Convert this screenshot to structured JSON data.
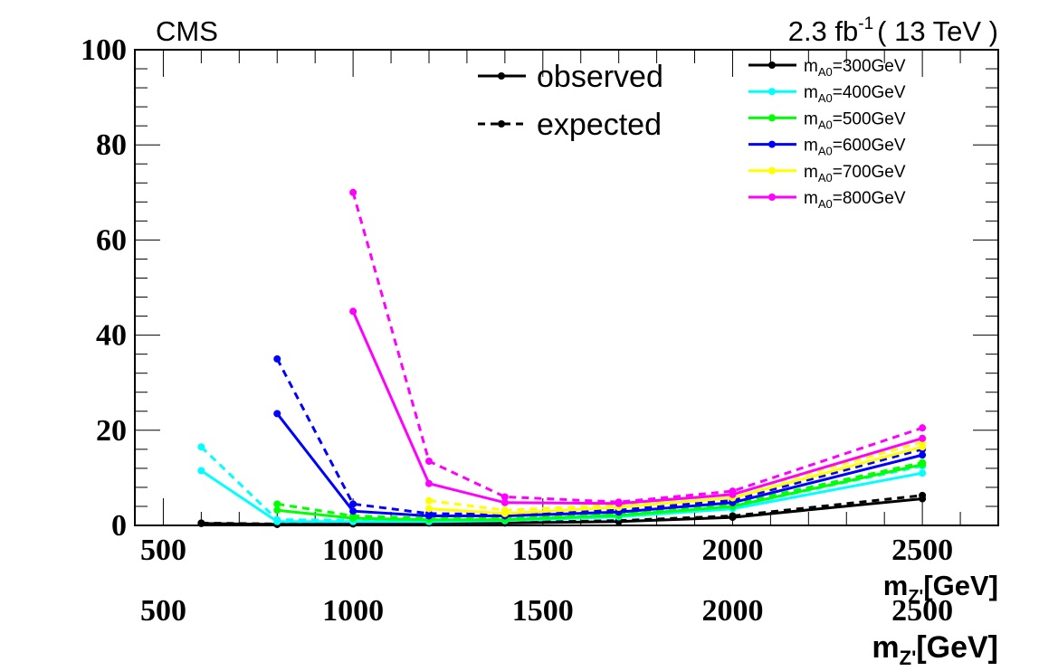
{
  "chart_data": {
    "type": "line",
    "header": {
      "left": "CMS",
      "lumi": "2.3 fb",
      "lumi_sup": "-1",
      "energy": "( 13 TeV )"
    },
    "xlabel": {
      "main": "m",
      "sub": "Z'",
      "unit": "[GeV]"
    },
    "ylabel": "",
    "xlim": [
      425,
      2700
    ],
    "ylim": [
      0,
      100
    ],
    "xticks": [
      500,
      1000,
      1500,
      2000,
      2500
    ],
    "yticks": [
      0,
      20,
      40,
      60,
      80,
      100
    ],
    "style_legend": [
      {
        "label": "observed",
        "dash": "solid"
      },
      {
        "label": "expected",
        "dash": "dashed"
      }
    ],
    "series": [
      {
        "name": "m_{A0}=300GeV",
        "label_main": "m",
        "label_sub": "A0",
        "label_rest": "=300GeV",
        "color": "#000000",
        "observed": [
          [
            600,
            0.4
          ],
          [
            800,
            0.2
          ],
          [
            1000,
            0.3
          ],
          [
            1200,
            0.5
          ],
          [
            1400,
            0.5
          ],
          [
            1700,
            0.8
          ],
          [
            2000,
            1.7
          ],
          [
            2500,
            5.6
          ]
        ],
        "expected": [
          [
            600,
            0.5
          ],
          [
            800,
            0.3
          ],
          [
            1000,
            0.4
          ],
          [
            1200,
            0.6
          ],
          [
            1400,
            0.6
          ],
          [
            1700,
            1.0
          ],
          [
            2000,
            2.0
          ],
          [
            2500,
            6.3
          ]
        ]
      },
      {
        "name": "m_{A0}=400GeV",
        "label_main": "m",
        "label_sub": "A0",
        "label_rest": "=400GeV",
        "color": "#00ffff",
        "observed": [
          [
            600,
            11.5
          ],
          [
            800,
            0.8
          ],
          [
            1000,
            0.8
          ],
          [
            1200,
            0.8
          ],
          [
            1400,
            1.0
          ],
          [
            1700,
            1.8
          ],
          [
            2000,
            3.5
          ],
          [
            2500,
            11.0
          ]
        ],
        "expected": [
          [
            600,
            16.5
          ],
          [
            800,
            1.2
          ],
          [
            1000,
            1.1
          ],
          [
            1200,
            1.1
          ],
          [
            1400,
            1.3
          ],
          [
            1700,
            2.2
          ],
          [
            2000,
            4.0
          ],
          [
            2500,
            12.5
          ]
        ]
      },
      {
        "name": "m_{A0}=500GeV",
        "label_main": "m",
        "label_sub": "A0",
        "label_rest": "=500GeV",
        "color": "#00ff00",
        "observed": [
          [
            800,
            3.2
          ],
          [
            1000,
            1.5
          ],
          [
            1200,
            1.2
          ],
          [
            1400,
            1.2
          ],
          [
            1700,
            2.1
          ],
          [
            2000,
            4.0
          ],
          [
            2500,
            12.8
          ]
        ],
        "expected": [
          [
            800,
            4.5
          ],
          [
            1000,
            2.0
          ],
          [
            1200,
            1.5
          ],
          [
            1400,
            1.5
          ],
          [
            1700,
            2.5
          ],
          [
            2000,
            4.5
          ],
          [
            2500,
            13.2
          ]
        ]
      },
      {
        "name": "m_{A0}=600GeV",
        "label_main": "m",
        "label_sub": "A0",
        "label_rest": "=600GeV",
        "color": "#0000ff",
        "observed": [
          [
            800,
            23.5
          ],
          [
            1000,
            3.0
          ],
          [
            1200,
            2.0
          ],
          [
            1400,
            2.0
          ],
          [
            1700,
            2.8
          ],
          [
            2000,
            4.8
          ],
          [
            2500,
            14.8
          ]
        ],
        "expected": [
          [
            800,
            35.0
          ],
          [
            1000,
            4.5
          ],
          [
            1200,
            2.5
          ],
          [
            1400,
            2.3
          ],
          [
            1700,
            3.2
          ],
          [
            2000,
            5.3
          ],
          [
            2500,
            16.0
          ]
        ]
      },
      {
        "name": "m_{A0}=700GeV",
        "label_main": "m",
        "label_sub": "A0",
        "label_rest": "=700GeV",
        "color": "#ffff00",
        "observed": [
          [
            1200,
            3.5
          ],
          [
            1400,
            2.5
          ],
          [
            1700,
            3.8
          ],
          [
            2000,
            5.8
          ],
          [
            2500,
            16.5
          ]
        ],
        "expected": [
          [
            1200,
            5.2
          ],
          [
            1400,
            3.2
          ],
          [
            1700,
            4.3
          ],
          [
            2000,
            6.5
          ],
          [
            2500,
            17.5
          ]
        ]
      },
      {
        "name": "m_{A0}=800GeV",
        "label_main": "m",
        "label_sub": "A0",
        "label_rest": "=800GeV",
        "color": "#ff00ff",
        "observed": [
          [
            1000,
            45.0
          ],
          [
            1200,
            8.8
          ],
          [
            1400,
            4.8
          ],
          [
            1700,
            4.6
          ],
          [
            2000,
            6.5
          ],
          [
            2500,
            18.3
          ]
        ],
        "expected": [
          [
            1000,
            70.0
          ],
          [
            1200,
            13.5
          ],
          [
            1400,
            6.0
          ],
          [
            1700,
            4.9
          ],
          [
            2000,
            7.2
          ],
          [
            2500,
            20.5
          ]
        ]
      }
    ]
  }
}
